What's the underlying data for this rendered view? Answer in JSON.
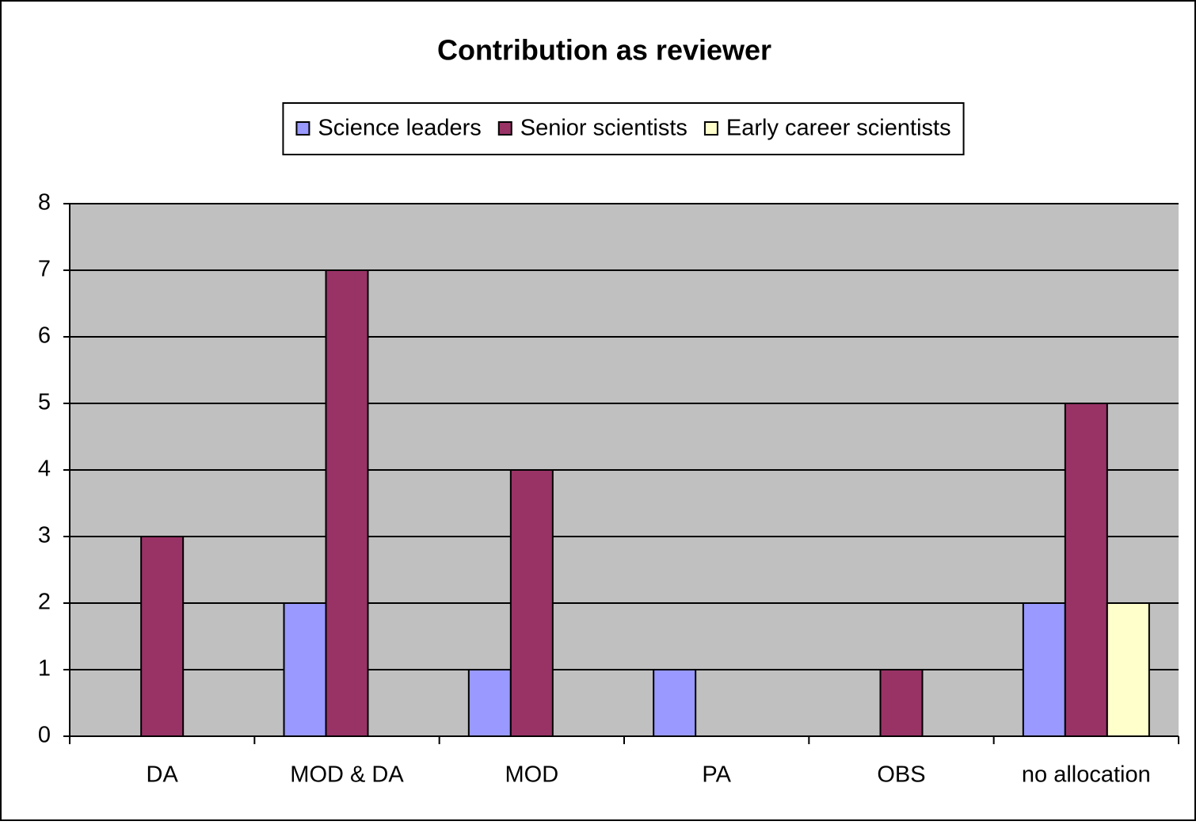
{
  "chart_data": {
    "type": "bar",
    "title": "Contribution as reviewer",
    "categories": [
      "DA",
      "MOD & DA",
      "MOD",
      "PA",
      "OBS",
      "no allocation"
    ],
    "series": [
      {
        "name": "Science leaders",
        "color": "#9999ff",
        "values": [
          0,
          2,
          1,
          1,
          0,
          2
        ]
      },
      {
        "name": "Senior scientists",
        "color": "#993366",
        "values": [
          3,
          7,
          4,
          0,
          1,
          5
        ]
      },
      {
        "name": "Early career scientists",
        "color": "#ffffcc",
        "values": [
          0,
          0,
          0,
          0,
          0,
          2
        ]
      }
    ],
    "ylim": [
      0,
      8
    ],
    "yticks": [
      0,
      1,
      2,
      3,
      4,
      5,
      6,
      7,
      8
    ],
    "grid": true,
    "legend": "top"
  }
}
